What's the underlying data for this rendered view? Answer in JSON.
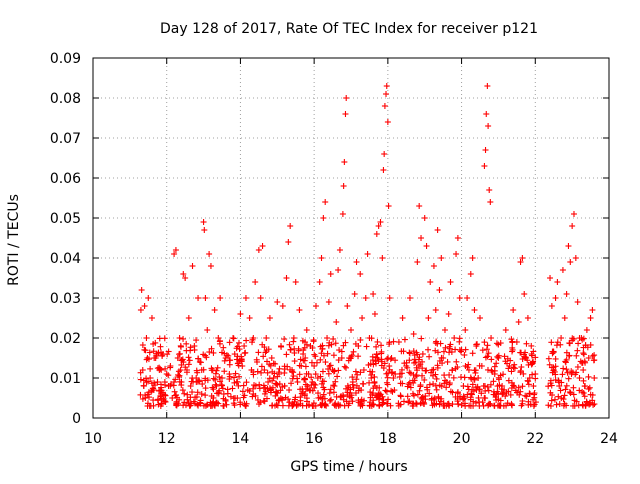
{
  "chart_data": {
    "type": "scatter",
    "title": "Day 128 of 2017, Rate Of TEC Index for receiver p121",
    "xlabel": "GPS time / hours",
    "ylabel": "ROTI / TECUs",
    "xlim": [
      10,
      24
    ],
    "ylim": [
      0,
      0.09
    ],
    "xticks": [
      "10",
      "12",
      "14",
      "16",
      "18",
      "20",
      "22",
      "24"
    ],
    "yticks": [
      "0",
      "0.01",
      "0.02",
      "0.03",
      "0.04",
      "0.05",
      "0.06",
      "0.07",
      "0.08",
      "0.09"
    ],
    "grid": true,
    "marker": "plus",
    "color": "#ff0000",
    "series": [
      {
        "points": [
          [
            11.3,
            0.027
          ],
          [
            11.32,
            0.032
          ],
          [
            11.35,
            0.012
          ],
          [
            11.38,
            0.008
          ],
          [
            11.4,
            0.028
          ],
          [
            11.42,
            0.005
          ],
          [
            11.45,
            0.02
          ],
          [
            11.48,
            0.003
          ],
          [
            11.5,
            0.03
          ],
          [
            11.55,
            0.01
          ],
          [
            11.6,
            0.025
          ],
          [
            11.65,
            0.007
          ],
          [
            11.7,
            0.015
          ],
          [
            11.75,
            0.009
          ],
          [
            11.8,
            0.012
          ],
          [
            11.85,
            0.006
          ],
          [
            11.9,
            0.016
          ],
          [
            11.95,
            0.009
          ],
          [
            12.0,
            0.011
          ],
          [
            12.05,
            0.008
          ],
          [
            12.1,
            0.013
          ],
          [
            12.15,
            0.005
          ],
          [
            12.2,
            0.041
          ],
          [
            12.25,
            0.042
          ],
          [
            12.3,
            0.015
          ],
          [
            12.35,
            0.02
          ],
          [
            12.4,
            0.009
          ],
          [
            12.45,
            0.036
          ],
          [
            12.5,
            0.035
          ],
          [
            12.55,
            0.012
          ],
          [
            12.6,
            0.025
          ],
          [
            12.65,
            0.008
          ],
          [
            12.7,
            0.038
          ],
          [
            12.75,
            0.018
          ],
          [
            12.8,
            0.01
          ],
          [
            12.85,
            0.03
          ],
          [
            12.9,
            0.014
          ],
          [
            12.95,
            0.006
          ],
          [
            13.0,
            0.049
          ],
          [
            13.02,
            0.047
          ],
          [
            13.05,
            0.03
          ],
          [
            13.1,
            0.022
          ],
          [
            13.15,
            0.041
          ],
          [
            13.2,
            0.038
          ],
          [
            13.25,
            0.012
          ],
          [
            13.3,
            0.027
          ],
          [
            13.35,
            0.008
          ],
          [
            13.4,
            0.02
          ],
          [
            13.45,
            0.03
          ],
          [
            13.5,
            0.01
          ],
          [
            13.55,
            0.006
          ],
          [
            13.6,
            0.015
          ],
          [
            13.7,
            0.011
          ],
          [
            13.8,
            0.02
          ],
          [
            13.9,
            0.009
          ],
          [
            14.0,
            0.026
          ],
          [
            14.05,
            0.013
          ],
          [
            14.1,
            0.018
          ],
          [
            14.15,
            0.03
          ],
          [
            14.2,
            0.007
          ],
          [
            14.25,
            0.025
          ],
          [
            14.3,
            0.012
          ],
          [
            14.35,
            0.02
          ],
          [
            14.4,
            0.034
          ],
          [
            14.45,
            0.014
          ],
          [
            14.5,
            0.042
          ],
          [
            14.55,
            0.03
          ],
          [
            14.6,
            0.043
          ],
          [
            14.65,
            0.012
          ],
          [
            14.7,
            0.02
          ],
          [
            14.75,
            0.009
          ],
          [
            14.8,
            0.025
          ],
          [
            14.85,
            0.015
          ],
          [
            14.9,
            0.01
          ],
          [
            15.0,
            0.029
          ],
          [
            15.05,
            0.011
          ],
          [
            15.1,
            0.018
          ],
          [
            15.15,
            0.028
          ],
          [
            15.2,
            0.008
          ],
          [
            15.25,
            0.035
          ],
          [
            15.3,
            0.044
          ],
          [
            15.35,
            0.048
          ],
          [
            15.4,
            0.012
          ],
          [
            15.45,
            0.02
          ],
          [
            15.5,
            0.034
          ],
          [
            15.55,
            0.009
          ],
          [
            15.6,
            0.027
          ],
          [
            15.65,
            0.013
          ],
          [
            15.7,
            0.016
          ],
          [
            15.75,
            0.006
          ],
          [
            15.8,
            0.022
          ],
          [
            15.85,
            0.011
          ],
          [
            15.9,
            0.018
          ],
          [
            15.95,
            0.009
          ],
          [
            16.0,
            0.013
          ],
          [
            16.05,
            0.028
          ],
          [
            16.1,
            0.01
          ],
          [
            16.15,
            0.034
          ],
          [
            16.2,
            0.04
          ],
          [
            16.25,
            0.05
          ],
          [
            16.3,
            0.054
          ],
          [
            16.35,
            0.02
          ],
          [
            16.4,
            0.029
          ],
          [
            16.45,
            0.036
          ],
          [
            16.5,
            0.012
          ],
          [
            16.55,
            0.008
          ],
          [
            16.6,
            0.024
          ],
          [
            16.65,
            0.037
          ],
          [
            16.7,
            0.042
          ],
          [
            16.75,
            0.015
          ],
          [
            16.78,
            0.051
          ],
          [
            16.8,
            0.058
          ],
          [
            16.82,
            0.064
          ],
          [
            16.85,
            0.076
          ],
          [
            16.87,
            0.08
          ],
          [
            16.9,
            0.028
          ],
          [
            16.95,
            0.015
          ],
          [
            17.0,
            0.022
          ],
          [
            17.05,
            0.009
          ],
          [
            17.1,
            0.031
          ],
          [
            17.15,
            0.039
          ],
          [
            17.2,
            0.018
          ],
          [
            17.25,
            0.036
          ],
          [
            17.3,
            0.025
          ],
          [
            17.35,
            0.012
          ],
          [
            17.4,
            0.03
          ],
          [
            17.45,
            0.041
          ],
          [
            17.5,
            0.02
          ],
          [
            17.55,
            0.01
          ],
          [
            17.6,
            0.031
          ],
          [
            17.65,
            0.026
          ],
          [
            17.7,
            0.046
          ],
          [
            17.75,
            0.048
          ],
          [
            17.8,
            0.049
          ],
          [
            17.85,
            0.04
          ],
          [
            17.88,
            0.062
          ],
          [
            17.9,
            0.066
          ],
          [
            17.92,
            0.078
          ],
          [
            17.95,
            0.081
          ],
          [
            17.97,
            0.083
          ],
          [
            18.0,
            0.074
          ],
          [
            18.02,
            0.053
          ],
          [
            18.05,
            0.03
          ],
          [
            18.1,
            0.015
          ],
          [
            18.15,
            0.01
          ],
          [
            18.2,
            0.011
          ],
          [
            18.3,
            0.019
          ],
          [
            18.4,
            0.025
          ],
          [
            18.5,
            0.013
          ],
          [
            18.6,
            0.03
          ],
          [
            18.7,
            0.021
          ],
          [
            18.8,
            0.039
          ],
          [
            18.85,
            0.053
          ],
          [
            18.9,
            0.045
          ],
          [
            18.95,
            0.016
          ],
          [
            19.0,
            0.05
          ],
          [
            19.05,
            0.043
          ],
          [
            19.1,
            0.025
          ],
          [
            19.15,
            0.034
          ],
          [
            19.2,
            0.012
          ],
          [
            19.25,
            0.038
          ],
          [
            19.3,
            0.027
          ],
          [
            19.35,
            0.047
          ],
          [
            19.4,
            0.032
          ],
          [
            19.45,
            0.04
          ],
          [
            19.5,
            0.015
          ],
          [
            19.55,
            0.022
          ],
          [
            19.6,
            0.009
          ],
          [
            19.65,
            0.026
          ],
          [
            19.7,
            0.034
          ],
          [
            19.75,
            0.012
          ],
          [
            19.8,
            0.02
          ],
          [
            19.85,
            0.041
          ],
          [
            19.9,
            0.045
          ],
          [
            19.95,
            0.03
          ],
          [
            20.0,
            0.017
          ],
          [
            20.05,
            0.008
          ],
          [
            20.1,
            0.022
          ],
          [
            20.15,
            0.03
          ],
          [
            20.2,
            0.012
          ],
          [
            20.25,
            0.036
          ],
          [
            20.3,
            0.04
          ],
          [
            20.35,
            0.027
          ],
          [
            20.4,
            0.018
          ],
          [
            20.45,
            0.01
          ],
          [
            20.5,
            0.025
          ],
          [
            20.55,
            0.013
          ],
          [
            20.6,
            0.008
          ],
          [
            20.62,
            0.063
          ],
          [
            20.65,
            0.067
          ],
          [
            20.67,
            0.076
          ],
          [
            20.7,
            0.083
          ],
          [
            20.72,
            0.073
          ],
          [
            20.75,
            0.057
          ],
          [
            20.78,
            0.054
          ],
          [
            20.8,
            0.02
          ],
          [
            20.9,
            0.011
          ],
          [
            21.0,
            0.015
          ],
          [
            21.1,
            0.008
          ],
          [
            21.2,
            0.022
          ],
          [
            21.3,
            0.013
          ],
          [
            21.4,
            0.027
          ],
          [
            21.5,
            0.019
          ],
          [
            21.55,
            0.024
          ],
          [
            21.6,
            0.039
          ],
          [
            21.65,
            0.04
          ],
          [
            21.7,
            0.031
          ],
          [
            21.75,
            0.015
          ],
          [
            21.8,
            0.025
          ],
          [
            21.85,
            0.01
          ],
          [
            21.9,
            0.016
          ],
          [
            21.95,
            0.008
          ],
          [
            22.0,
            0.011
          ],
          [
            22.4,
            0.035
          ],
          [
            22.45,
            0.028
          ],
          [
            22.5,
            0.012
          ],
          [
            22.55,
            0.03
          ],
          [
            22.6,
            0.034
          ],
          [
            22.65,
            0.008
          ],
          [
            22.7,
            0.02
          ],
          [
            22.75,
            0.037
          ],
          [
            22.8,
            0.025
          ],
          [
            22.85,
            0.031
          ],
          [
            22.9,
            0.043
          ],
          [
            22.95,
            0.039
          ],
          [
            23.0,
            0.048
          ],
          [
            23.05,
            0.051
          ],
          [
            23.1,
            0.04
          ],
          [
            23.15,
            0.029
          ],
          [
            23.2,
            0.01
          ],
          [
            23.25,
            0.02
          ],
          [
            23.3,
            0.012
          ],
          [
            23.35,
            0.008
          ],
          [
            23.4,
            0.022
          ],
          [
            23.45,
            0.015
          ],
          [
            23.5,
            0.025
          ],
          [
            23.55,
            0.027
          ],
          [
            23.6,
            0.01
          ]
        ]
      }
    ]
  }
}
